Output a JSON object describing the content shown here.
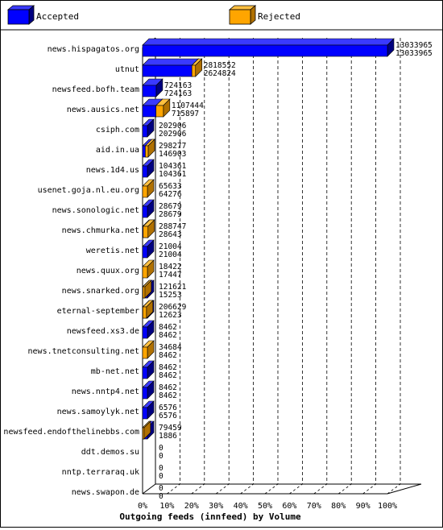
{
  "chart_data": {
    "type": "bar",
    "title": "Outgoing feeds (innfeed) by Volume",
    "xlabel": "",
    "ylabel": "",
    "xlim": [
      0,
      100
    ],
    "x_ticks": [
      "0%",
      "10%",
      "20%",
      "30%",
      "40%",
      "50%",
      "60%",
      "70%",
      "80%",
      "90%",
      "100%"
    ],
    "grid": "dashed vertical",
    "legend_position": "top",
    "series": [
      {
        "name": "Accepted",
        "color": "#0000ff"
      },
      {
        "name": "Rejected",
        "color": "#ffa500"
      }
    ],
    "categories": [
      "news.hispagatos.org",
      "utnut",
      "newsfeed.bofh.team",
      "news.ausics.net",
      "csiph.com",
      "aid.in.ua",
      "news.1d4.us",
      "usenet.goja.nl.eu.org",
      "news.sonologic.net",
      "news.chmurka.net",
      "weretis.net",
      "news.quux.org",
      "news.snarked.org",
      "eternal-september",
      "newsfeed.xs3.de",
      "news.tnetconsulting.net",
      "mb-net.net",
      "news.nntp4.net",
      "news.samoylyk.net",
      "newsfeed.endofthelinebbs.com",
      "ddt.demos.su",
      "nntp.terraraq.uk",
      "news.swapon.de"
    ],
    "offered": [
      13033965,
      2818552,
      724163,
      1107444,
      202906,
      298277,
      104361,
      65633,
      28679,
      288747,
      21004,
      18422,
      121621,
      206629,
      8462,
      34684,
      8462,
      8462,
      6576,
      79459,
      0,
      0,
      0
    ],
    "accepted": [
      13033965,
      2624824,
      724163,
      715897,
      202906,
      146903,
      104361,
      64276,
      28679,
      28643,
      21004,
      17447,
      15253,
      12623,
      8462,
      8462,
      8462,
      8462,
      6576,
      1886,
      0,
      0,
      0
    ],
    "offered_labels": [
      "13033965",
      "2818552",
      "724163",
      "1107444",
      "202906",
      "298277",
      "104361",
      "65633",
      "28679",
      "288747",
      "21004",
      "18422",
      "121621",
      "206629",
      "8462",
      "34684",
      "8462",
      "8462",
      "6576",
      "79459",
      "0",
      "0",
      "0"
    ],
    "accepted_labels": [
      "13033965",
      "2624824",
      "724163",
      "715897",
      "202906",
      "146903",
      "104361",
      "64276",
      "28679",
      "28643",
      "21004",
      "17447",
      "15253",
      "12623",
      "8462",
      "8462",
      "8462",
      "8462",
      "6576",
      "1886",
      "0",
      "0",
      "0"
    ]
  }
}
